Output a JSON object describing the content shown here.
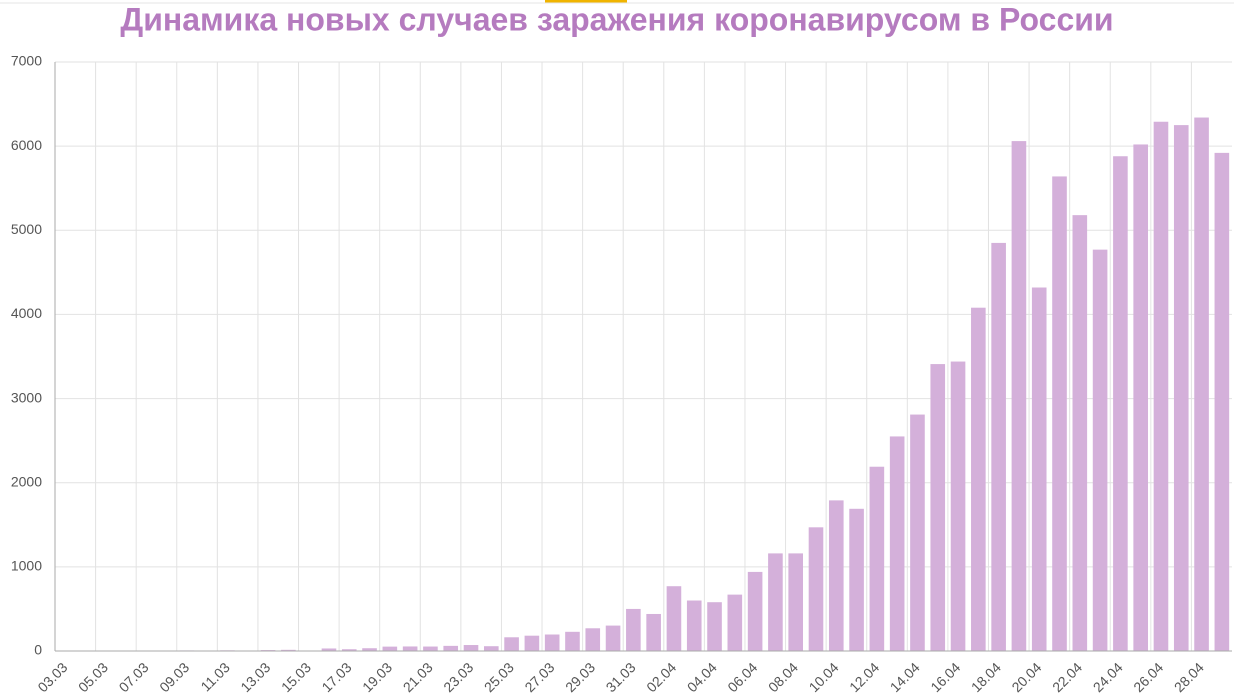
{
  "chart_data": {
    "type": "bar",
    "title": "Динамика новых случаев заражения коронавирусом в России",
    "categories": [
      "03.03",
      null,
      "05.03",
      null,
      "07.03",
      null,
      "09.03",
      null,
      "11.03",
      null,
      "13.03",
      null,
      "15.03",
      null,
      "17.03",
      null,
      "19.03",
      null,
      "21.03",
      null,
      "23.03",
      null,
      "25.03",
      null,
      "27.03",
      null,
      "29.03",
      null,
      "31.03",
      null,
      "02.04",
      null,
      "04.04",
      null,
      "06.04",
      null,
      "08.04",
      null,
      "10.04",
      null,
      "12.04",
      null,
      "14.04",
      null,
      "16.04",
      null,
      "18.04",
      null,
      "20.04",
      null,
      "22.04",
      null,
      "24.04",
      null,
      "26.04",
      null,
      "28.04",
      null
    ],
    "values": [
      0,
      0,
      1,
      0,
      6,
      3,
      7,
      3,
      8,
      6,
      11,
      14,
      4,
      30,
      21,
      33,
      52,
      54,
      53,
      61,
      71,
      57,
      163,
      182,
      196,
      228,
      270,
      302,
      500,
      440,
      770,
      600,
      580,
      670,
      940,
      1160,
      1160,
      1470,
      1790,
      1690,
      2190,
      2550,
      2810,
      3410,
      3440,
      4080,
      4850,
      6060,
      4320,
      5640,
      5180,
      4770,
      5880,
      6020,
      6290,
      6250,
      6340,
      5920
    ],
    "color": "#d4b0da",
    "ylim": [
      0,
      7000
    ],
    "yticks": [
      0,
      1000,
      2000,
      3000,
      4000,
      5000,
      6000,
      7000
    ],
    "grid": true
  }
}
